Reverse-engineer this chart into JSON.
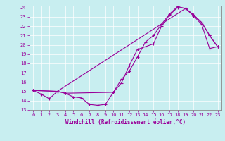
{
  "xlabel": "Windchill (Refroidissement éolien,°C)",
  "bg_color": "#c8eef0",
  "line_color": "#990099",
  "xlim": [
    -0.5,
    23.5
  ],
  "ylim": [
    13,
    24.2
  ],
  "xticks": [
    0,
    1,
    2,
    3,
    4,
    5,
    6,
    7,
    8,
    9,
    10,
    11,
    12,
    13,
    14,
    15,
    16,
    17,
    18,
    19,
    20,
    21,
    22,
    23
  ],
  "yticks": [
    13,
    14,
    15,
    16,
    17,
    18,
    19,
    20,
    21,
    22,
    23,
    24
  ],
  "line1_x": [
    0,
    1,
    2,
    3,
    4,
    5,
    6,
    7,
    8,
    9,
    10,
    11,
    12,
    13,
    14,
    15,
    16,
    17,
    18,
    19,
    20,
    21,
    22,
    23
  ],
  "line1_y": [
    15.1,
    14.7,
    14.2,
    15.0,
    14.8,
    14.4,
    14.3,
    13.6,
    13.5,
    13.6,
    14.9,
    15.9,
    17.8,
    19.5,
    19.8,
    20.1,
    22.0,
    23.2,
    24.0,
    23.9,
    23.1,
    22.2,
    19.6,
    19.8
  ],
  "line2_x": [
    0,
    3,
    4,
    10,
    11,
    12,
    13,
    14,
    15,
    16,
    17,
    18,
    19,
    20,
    21,
    22,
    23
  ],
  "line2_y": [
    15.1,
    15.0,
    14.8,
    14.9,
    16.3,
    17.2,
    18.7,
    20.3,
    21.0,
    22.2,
    23.3,
    24.1,
    23.9,
    23.2,
    22.4,
    21.0,
    19.8
  ],
  "line3_x": [
    0,
    3,
    19,
    20,
    21,
    22,
    23
  ],
  "line3_y": [
    15.1,
    15.0,
    23.9,
    23.2,
    22.4,
    21.0,
    19.8
  ],
  "tick_fontsize": 5.0,
  "xlabel_fontsize": 5.5,
  "grid_color": "#ffffff",
  "spine_color": "#888888"
}
